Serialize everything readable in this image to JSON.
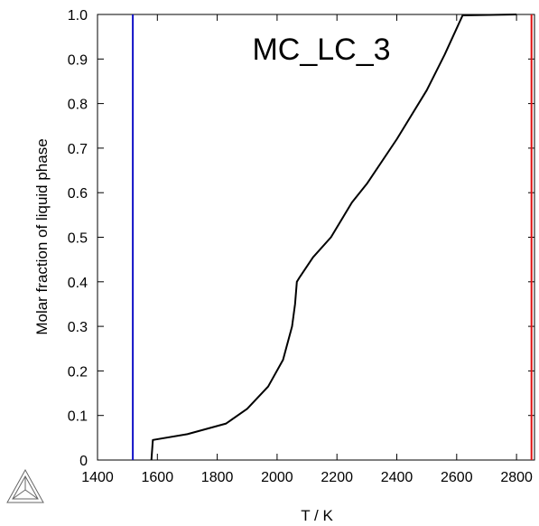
{
  "chart_data": {
    "type": "line",
    "xlabel": "T / K",
    "ylabel": "Molar fraction of liquid phase",
    "xlim": [
      1400,
      2860
    ],
    "ylim": [
      0,
      1.0
    ],
    "x_ticks": [
      "1400",
      "1600",
      "1800",
      "2000",
      "2200",
      "2400",
      "2600",
      "2800"
    ],
    "y_ticks": [
      "0",
      "0.1",
      "0.2",
      "0.3",
      "0.4",
      "0.5",
      "0.6",
      "0.7",
      "0.8",
      "0.9",
      "1.0"
    ],
    "annotation": "MC_LC_3",
    "grid": false,
    "series": [
      {
        "color": "#000000",
        "x": [
          1580,
          1585,
          1700,
          1830,
          1900,
          1970,
          2020,
          2050,
          2060,
          2066,
          2075,
          2120,
          2180,
          2250,
          2300,
          2400,
          2500,
          2560,
          2620,
          2800
        ],
        "y": [
          0.0,
          0.045,
          0.058,
          0.082,
          0.115,
          0.165,
          0.225,
          0.3,
          0.35,
          0.4,
          0.41,
          0.455,
          0.5,
          0.578,
          0.62,
          0.72,
          0.83,
          0.91,
          0.998,
          1.0
        ]
      }
    ],
    "vertical_lines": [
      {
        "x": 1518,
        "color": "#1010c8"
      },
      {
        "x": 2850,
        "color": "#e01010"
      }
    ]
  },
  "logo": {
    "name": "triangle-logo-icon"
  }
}
